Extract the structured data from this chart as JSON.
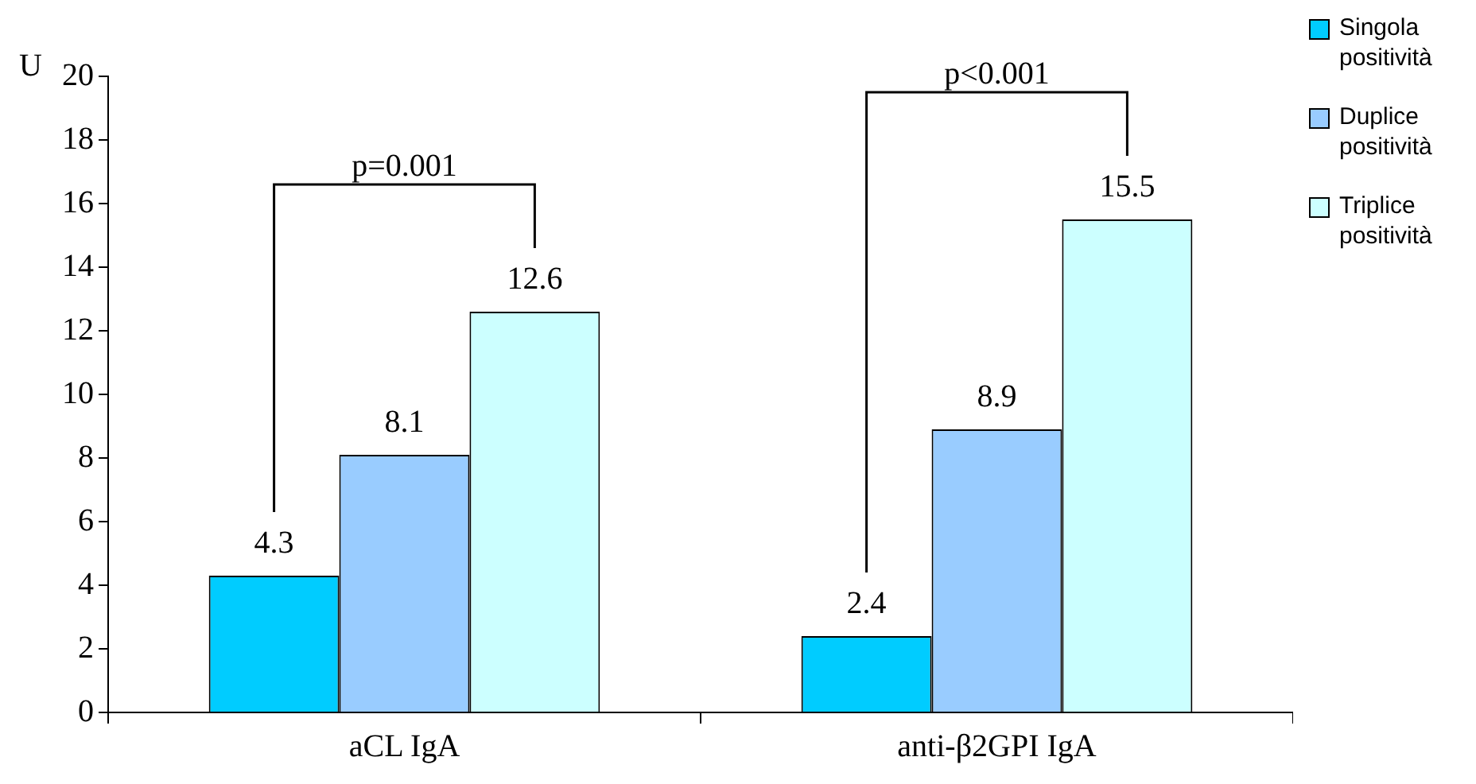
{
  "chart_data": {
    "type": "bar",
    "ylabel": "U",
    "categories": [
      "aCL IgA",
      "anti-β2GPI IgA"
    ],
    "series": [
      {
        "name": "Singola positività",
        "color": "#00ccff",
        "values": [
          4.3,
          2.4
        ]
      },
      {
        "name": "Duplice positività",
        "color": "#99ccff",
        "values": [
          8.1,
          8.9
        ]
      },
      {
        "name": "Triplice positività",
        "color": "#ccffff",
        "values": [
          12.6,
          15.5
        ]
      }
    ],
    "ylim": [
      0,
      20
    ],
    "yticks": [
      0,
      2,
      4,
      6,
      8,
      10,
      12,
      14,
      16,
      18,
      20
    ],
    "grid": false,
    "legend": "top right",
    "data_labels": true,
    "annotations": [
      "p=0.001",
      "p<0.001"
    ]
  }
}
